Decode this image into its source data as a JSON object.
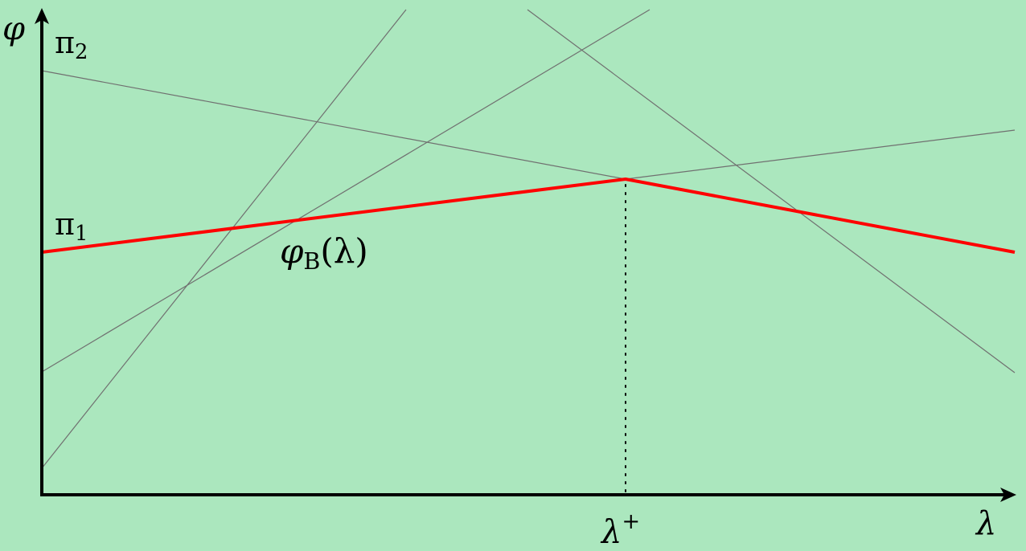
{
  "labels": {
    "y_axis": "φ",
    "x_axis": "λ",
    "pi2": "π",
    "pi2_sub": "2",
    "pi1": "π",
    "pi1_sub": "1",
    "curve": "φ",
    "curve_sub": "B",
    "curve_arg": "(λ)",
    "breakpoint": "λ",
    "breakpoint_sup": "+"
  },
  "colors": {
    "background": "#abe7be",
    "envelope": "#ff0000",
    "lines": "#707070",
    "axes": "#000000"
  }
}
